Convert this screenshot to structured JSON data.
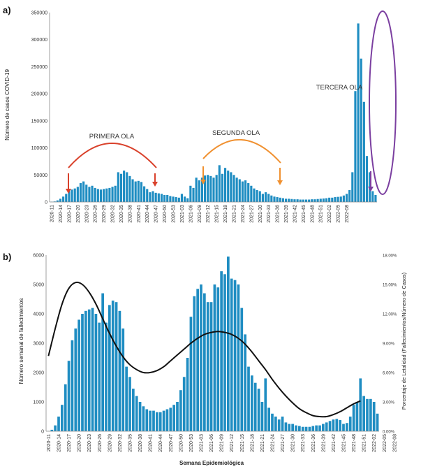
{
  "chart_data": [
    {
      "type": "bar",
      "panel_label": "a)",
      "ylabel": "Número de casos COVID-19",
      "xlabel": "",
      "ylim": [
        0,
        350000
      ],
      "yticks": [
        "0",
        "50000",
        "100000",
        "150000",
        "200000",
        "250000",
        "300000",
        "350000"
      ],
      "ytick_values": [
        0,
        50000,
        100000,
        150000,
        200000,
        250000,
        300000,
        350000
      ],
      "grid": false,
      "x_tick_labels": [
        "2020-11",
        "2020-14",
        "2020-17",
        "2020-20",
        "2020-23",
        "2020-26",
        "2020-29",
        "2020-32",
        "2020-35",
        "2020-38",
        "2020-41",
        "2020-44",
        "2020-47",
        "2020-50",
        "2020-53",
        "2021-03",
        "2021-06",
        "2021-09",
        "2021-12",
        "2021-15",
        "2021-18",
        "2021-21",
        "2021-24",
        "2021-27",
        "2021-30",
        "2021-33",
        "2021-36",
        "2021-39",
        "2021-42",
        "2021-45",
        "2021-48",
        "2021-51",
        "2022-02",
        "2022-05",
        "2022-08"
      ],
      "series": [
        {
          "color": "#1f8dc2",
          "values": [
            500,
            1000,
            3000,
            6000,
            10000,
            15000,
            20000,
            23000,
            25000,
            28000,
            35000,
            38000,
            32000,
            28000,
            30000,
            26000,
            24000,
            23000,
            24000,
            25000,
            26000,
            28000,
            30000,
            55000,
            52000,
            58000,
            55000,
            48000,
            42000,
            38000,
            39000,
            37000,
            29000,
            24000,
            18000,
            20000,
            17000,
            16000,
            15000,
            13000,
            13000,
            11000,
            10000,
            9000,
            8000,
            15000,
            10000,
            7000,
            30000,
            26000,
            45000,
            40000,
            45000,
            49000,
            50000,
            48000,
            45000,
            50000,
            68000,
            52000,
            63000,
            58000,
            55000,
            50000,
            45000,
            42000,
            38000,
            40000,
            35000,
            30000,
            25000,
            22000,
            20000,
            15000,
            18000,
            15000,
            12000,
            10000,
            9000,
            8000,
            7000,
            6000,
            6000,
            5500,
            5000,
            5000,
            4500,
            4500,
            4500,
            4500,
            5000,
            5000,
            5500,
            6000,
            6500,
            7000,
            8000,
            8000,
            9000,
            9500,
            10000,
            12000,
            15000,
            22000,
            55000,
            205000,
            330000,
            265000,
            185000,
            85000,
            55000,
            20000,
            13000
          ]
        }
      ],
      "annotations": [
        {
          "text": "PRIMERA OLA",
          "color": "#d9412b"
        },
        {
          "text": "SEGUNDA OLA",
          "color": "#f0902f"
        },
        {
          "text": "TERCERA OLA",
          "color": "#7b3fa0"
        }
      ]
    },
    {
      "type": "bar",
      "panel_label": "b)",
      "xlabel": "Semana Epidemiológica",
      "ylabel": "Número semanal de fallecimientos",
      "y2label": "Porcentaje de Letalidad (Fallecimientos/Número de Casos)",
      "ylim": [
        0,
        6000
      ],
      "yticks": [
        "0",
        "1000",
        "2000",
        "3000",
        "4000",
        "5000",
        "6000"
      ],
      "ytick_values": [
        0,
        1000,
        2000,
        3000,
        4000,
        5000,
        6000
      ],
      "y2lim": [
        0,
        18
      ],
      "y2ticks": [
        "0.00%",
        "3.00%",
        "6.00%",
        "9.00%",
        "12.00%",
        "15.00%",
        "18.00%"
      ],
      "y2tick_values": [
        0,
        3,
        6,
        9,
        12,
        15,
        18
      ],
      "grid": false,
      "x_tick_labels": [
        "2020-11",
        "2020-14",
        "2020-17",
        "2020-20",
        "2020-23",
        "2020-26",
        "2020-29",
        "2020-32",
        "2020-35",
        "2020-38",
        "2020-41",
        "2020-44",
        "2020-47",
        "2020-50",
        "2020-53",
        "2021-03",
        "2021-06",
        "2021-09",
        "2021-12",
        "2021-15",
        "2021-18",
        "2021-21",
        "2021-24",
        "2021-27",
        "2021-30",
        "2021-33",
        "2021-36",
        "2021-39",
        "2021-42",
        "2021-45",
        "2021-48",
        "2021-51",
        "2022-02",
        "2022-05",
        "2022-08"
      ],
      "series": [
        {
          "name": "Fallecimientos",
          "color": "#1f8dc2",
          "values": [
            10,
            50,
            200,
            500,
            900,
            1600,
            2400,
            3100,
            3500,
            3800,
            4000,
            4100,
            4150,
            4200,
            4000,
            3700,
            4700,
            3700,
            4300,
            4450,
            4400,
            4100,
            3500,
            2200,
            1850,
            1450,
            1200,
            1000,
            850,
            750,
            700,
            700,
            650,
            650,
            700,
            750,
            800,
            900,
            1000,
            1400,
            1850,
            2500,
            3900,
            4600,
            4850,
            5000,
            4700,
            4400,
            4400,
            5000,
            4900,
            5450,
            5350,
            5950,
            5200,
            5150,
            5000,
            4200,
            3300,
            2200,
            1900,
            1650,
            1450,
            1000,
            1800,
            800,
            600,
            500,
            400,
            500,
            300,
            250,
            250,
            200,
            180,
            150,
            150,
            150,
            180,
            200,
            200,
            250,
            300,
            350,
            400,
            420,
            380,
            250,
            280,
            500,
            900,
            1000,
            1800,
            1200,
            1100,
            1100,
            1000,
            600
          ]
        },
        {
          "name": "Letalidad",
          "color": "#111111",
          "type": "line",
          "axis": "y2",
          "points": [
            [
              0,
              7.7
            ],
            [
              2,
              10.5
            ],
            [
              4,
              13
            ],
            [
              6,
              14.6
            ],
            [
              8,
              15.2
            ],
            [
              10,
              15.0
            ],
            [
              12,
              14.2
            ],
            [
              14,
              13.0
            ],
            [
              16,
              11.5
            ],
            [
              18,
              10.0
            ],
            [
              20,
              8.7
            ],
            [
              22,
              7.6
            ],
            [
              24,
              6.8
            ],
            [
              26,
              6.3
            ],
            [
              28,
              6.0
            ],
            [
              30,
              6.0
            ],
            [
              32,
              6.2
            ],
            [
              34,
              6.6
            ],
            [
              36,
              7.2
            ],
            [
              38,
              7.8
            ],
            [
              40,
              8.4
            ],
            [
              42,
              9.0
            ],
            [
              44,
              9.5
            ],
            [
              46,
              9.9
            ],
            [
              48,
              10.1
            ],
            [
              50,
              10.2
            ],
            [
              52,
              10.1
            ],
            [
              54,
              9.9
            ],
            [
              56,
              9.5
            ],
            [
              58,
              8.9
            ],
            [
              60,
              8.1
            ],
            [
              62,
              7.2
            ],
            [
              64,
              6.3
            ],
            [
              66,
              5.3
            ],
            [
              68,
              4.4
            ],
            [
              70,
              3.6
            ],
            [
              72,
              2.9
            ],
            [
              74,
              2.3
            ],
            [
              76,
              1.9
            ],
            [
              78,
              1.6
            ],
            [
              80,
              1.5
            ],
            [
              82,
              1.5
            ],
            [
              84,
              1.7
            ],
            [
              86,
              2.0
            ],
            [
              88,
              2.4
            ],
            [
              90,
              2.8
            ],
            [
              92,
              3.1
            ]
          ]
        }
      ]
    }
  ]
}
